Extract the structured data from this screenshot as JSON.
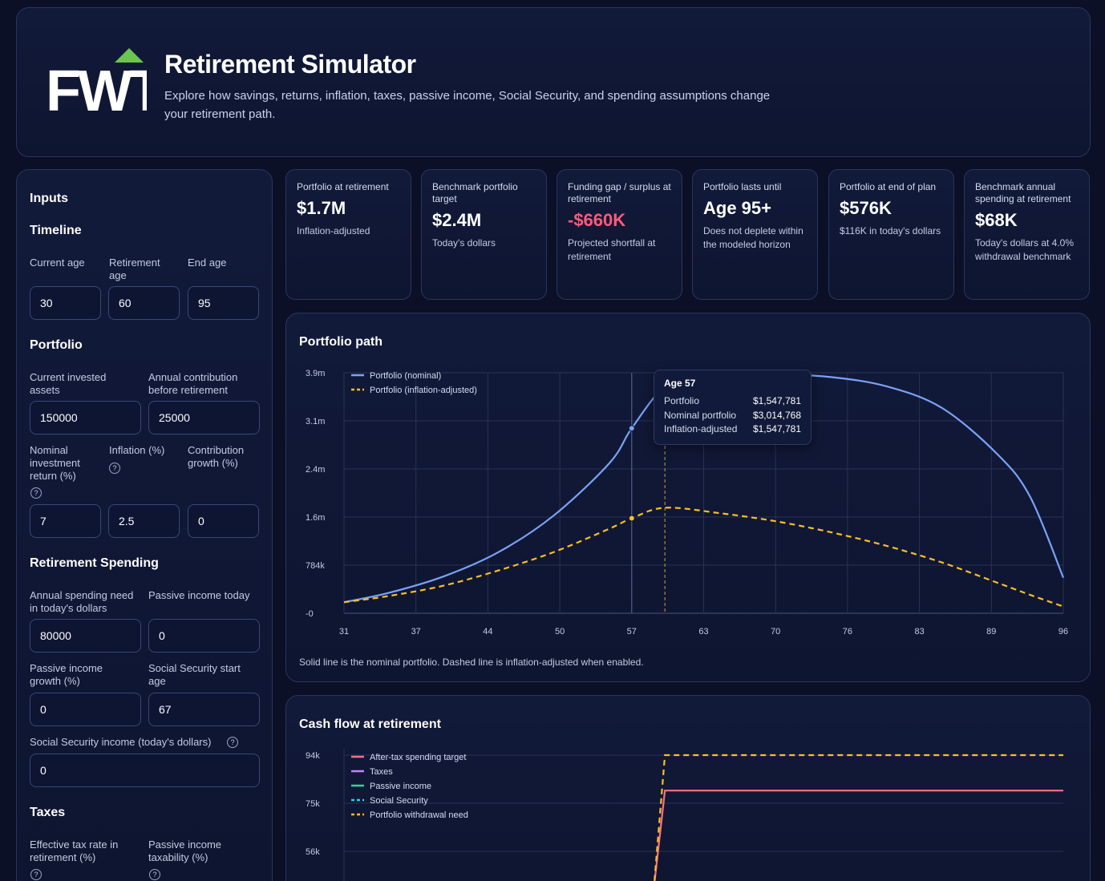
{
  "header": {
    "title": "Retirement Simulator",
    "subtitle": "Explore how savings, returns, inflation, taxes, passive income, Social Security, and spending assumptions change your retirement path.",
    "logo_text": "FWT"
  },
  "inputs": {
    "title": "Inputs",
    "timeline": {
      "heading": "Timeline",
      "current_age_label": "Current age",
      "current_age": "30",
      "retirement_age_label": "Retirement age",
      "retirement_age": "60",
      "end_age_label": "End age",
      "end_age": "95"
    },
    "portfolio": {
      "heading": "Portfolio",
      "assets_label": "Current invested assets",
      "assets": "150000",
      "contribution_label": "Annual contribution before retirement",
      "contribution": "25000",
      "return_label": "Nominal investment return (%)",
      "return": "7",
      "inflation_label": "Inflation (%)",
      "inflation": "2.5",
      "growth_label": "Contribution growth (%)",
      "growth": "0"
    },
    "spending": {
      "heading": "Retirement Spending",
      "need_label": "Annual spending need in today's dollars",
      "need": "80000",
      "passive_label": "Passive income today",
      "passive": "0",
      "passive_growth_label": "Passive income growth (%)",
      "passive_growth": "0",
      "ss_start_label": "Social Security start age",
      "ss_start": "67",
      "ss_income_label": "Social Security income (today's dollars)",
      "ss_income": "0"
    },
    "taxes": {
      "heading": "Taxes",
      "rate_label": "Effective tax rate in retirement (%)",
      "taxability_label": "Passive income taxability (%)"
    },
    "help_glyph": "?"
  },
  "kpis": [
    {
      "label": "Portfolio at retirement",
      "value": "$1.7M",
      "note": "Inflation-adjusted",
      "negative": false
    },
    {
      "label": "Benchmark portfolio target",
      "value": "$2.4M",
      "note": "Today's dollars",
      "negative": false
    },
    {
      "label": "Funding gap / surplus at retirement",
      "value": "-$660K",
      "note": "Projected shortfall at retirement",
      "negative": true
    },
    {
      "label": "Portfolio lasts until",
      "value": "Age 95+",
      "note": "Does not deplete within the modeled horizon",
      "negative": false
    },
    {
      "label": "Portfolio at end of plan",
      "value": "$576K",
      "note": "$116K in today's dollars",
      "negative": false
    },
    {
      "label": "Benchmark annual spending at retirement",
      "value": "$68K",
      "note": "Today's dollars at 4.0% withdrawal benchmark",
      "negative": false
    }
  ],
  "portfolio_chart": {
    "title": "Portfolio path",
    "caption": "Solid line is the nominal portfolio. Dashed line is inflation-adjusted when enabled.",
    "tooltip": {
      "title": "Age 57",
      "rows": [
        {
          "label": "Portfolio",
          "value": "$1,547,781"
        },
        {
          "label": "Nominal portfolio",
          "value": "$3,014,768"
        },
        {
          "label": "Inflation-adjusted",
          "value": "$1,547,781"
        }
      ]
    }
  },
  "cash_chart": {
    "title": "Cash flow at retirement"
  },
  "colors": {
    "nominal": "#7aa2f7",
    "real": "#fbbf24",
    "spending": "#fb7185",
    "taxes": "#c084fc",
    "passive": "#34d399",
    "social": "#22d3ee",
    "withdrawal": "#fbbf24"
  },
  "chart_data": [
    {
      "type": "line",
      "title": "Portfolio path",
      "xlabel": "",
      "ylabel": "",
      "x_ticks": [
        "31",
        "37",
        "44",
        "50",
        "57",
        "63",
        "70",
        "76",
        "83",
        "89",
        "96"
      ],
      "y_ticks": [
        "-0",
        "784k",
        "1.6m",
        "2.4m",
        "3.1m",
        "3.9m"
      ],
      "xlim": [
        31,
        96
      ],
      "ylim": [
        0,
        3920000
      ],
      "legend": "top-left",
      "grid": true,
      "series": [
        {
          "name": "Portfolio (nominal)",
          "style": "solid",
          "x": [
            31,
            35,
            40,
            45,
            50,
            55,
            57,
            60,
            63,
            67,
            70,
            75,
            80,
            85,
            90,
            93,
            96
          ],
          "y": [
            180000,
            330000,
            600000,
            1000000,
            1600000,
            2450000,
            3014768,
            3700000,
            3850000,
            3920000,
            3900000,
            3850000,
            3700000,
            3350000,
            2600000,
            1900000,
            580000
          ]
        },
        {
          "name": "Portfolio (inflation-adjusted)",
          "style": "dashed",
          "x": [
            31,
            35,
            40,
            45,
            50,
            55,
            57,
            60,
            65,
            70,
            75,
            80,
            85,
            90,
            93,
            96
          ],
          "y": [
            180000,
            280000,
            450000,
            700000,
            1000000,
            1380000,
            1547781,
            1720000,
            1630000,
            1500000,
            1320000,
            1100000,
            830000,
            500000,
            300000,
            110000
          ]
        }
      ]
    },
    {
      "type": "line",
      "title": "Cash flow at retirement",
      "xlabel": "",
      "ylabel": "",
      "y_ticks": [
        "94k",
        "75k",
        "56k"
      ],
      "legend": "top-left",
      "grid": true,
      "series": [
        {
          "name": "After-tax spending target",
          "style": "solid",
          "x": [
            31,
            59,
            60,
            96
          ],
          "y": [
            0,
            0,
            80000,
            80000
          ]
        },
        {
          "name": "Taxes",
          "style": "solid",
          "x": [],
          "y": []
        },
        {
          "name": "Passive income",
          "style": "solid",
          "x": [],
          "y": []
        },
        {
          "name": "Social Security",
          "style": "dashed",
          "x": [],
          "y": []
        },
        {
          "name": "Portfolio withdrawal need",
          "style": "dashed",
          "x": [
            31,
            59,
            60,
            96
          ],
          "y": [
            0,
            0,
            94000,
            94000
          ]
        }
      ]
    }
  ]
}
